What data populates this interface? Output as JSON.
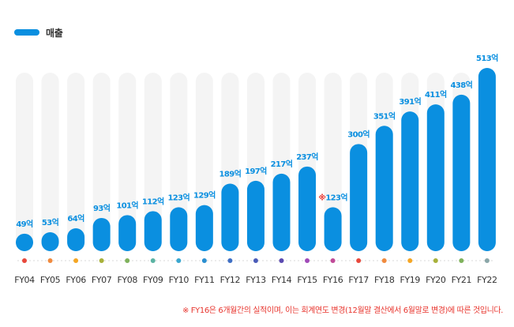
{
  "legend": {
    "label": "매출",
    "color": "#0a8fe0"
  },
  "footnote": "※ FY16은 6개월간의 실적이며, 이는 회계연도 변경(12월말 결산에서 6월말로 변경)에 따른 것입니다.",
  "colors": {
    "bar": "#0a8fe0",
    "track": "#f4f4f4",
    "label": "#0a8fe0",
    "highlight": "#e8352e"
  },
  "chart_data": {
    "type": "bar",
    "categories": [
      "FY04",
      "FY05",
      "FY06",
      "FY07",
      "FY08",
      "FY09",
      "FY10",
      "FY11",
      "FY12",
      "FY13",
      "FY14",
      "FY15",
      "FY16",
      "FY17",
      "FY18",
      "FY19",
      "FY20",
      "FY21",
      "FY22"
    ],
    "series": [
      {
        "name": "매출",
        "values": [
          49,
          53,
          64,
          93,
          101,
          112,
          123,
          129,
          189,
          197,
          217,
          237,
          123,
          300,
          351,
          391,
          411,
          438,
          513
        ],
        "labels": [
          "49억",
          "53억",
          "64억",
          "93억",
          "101억",
          "112억",
          "123억",
          "129억",
          "189억",
          "197억",
          "217억",
          "237억",
          "※123억",
          "300억",
          "351억",
          "391억",
          "411억",
          "438억",
          "513억"
        ]
      }
    ],
    "highlight_category": "FY16",
    "ylim": [
      0,
      513
    ],
    "grid": false,
    "legend_position": "top-left",
    "dot_colors": [
      "#e8483c",
      "#f08a3e",
      "#f5a623",
      "#a8b13a",
      "#7fb25c",
      "#5bb3a3",
      "#3aa7d0",
      "#2b8fd0",
      "#3f6fc4",
      "#4a5bb8",
      "#5a4ab0",
      "#a04ab8",
      "#c04a98",
      "#e8483c",
      "#f08a3e",
      "#f5a623",
      "#a8b13a",
      "#7fb25c",
      "#8aa6a8"
    ]
  }
}
